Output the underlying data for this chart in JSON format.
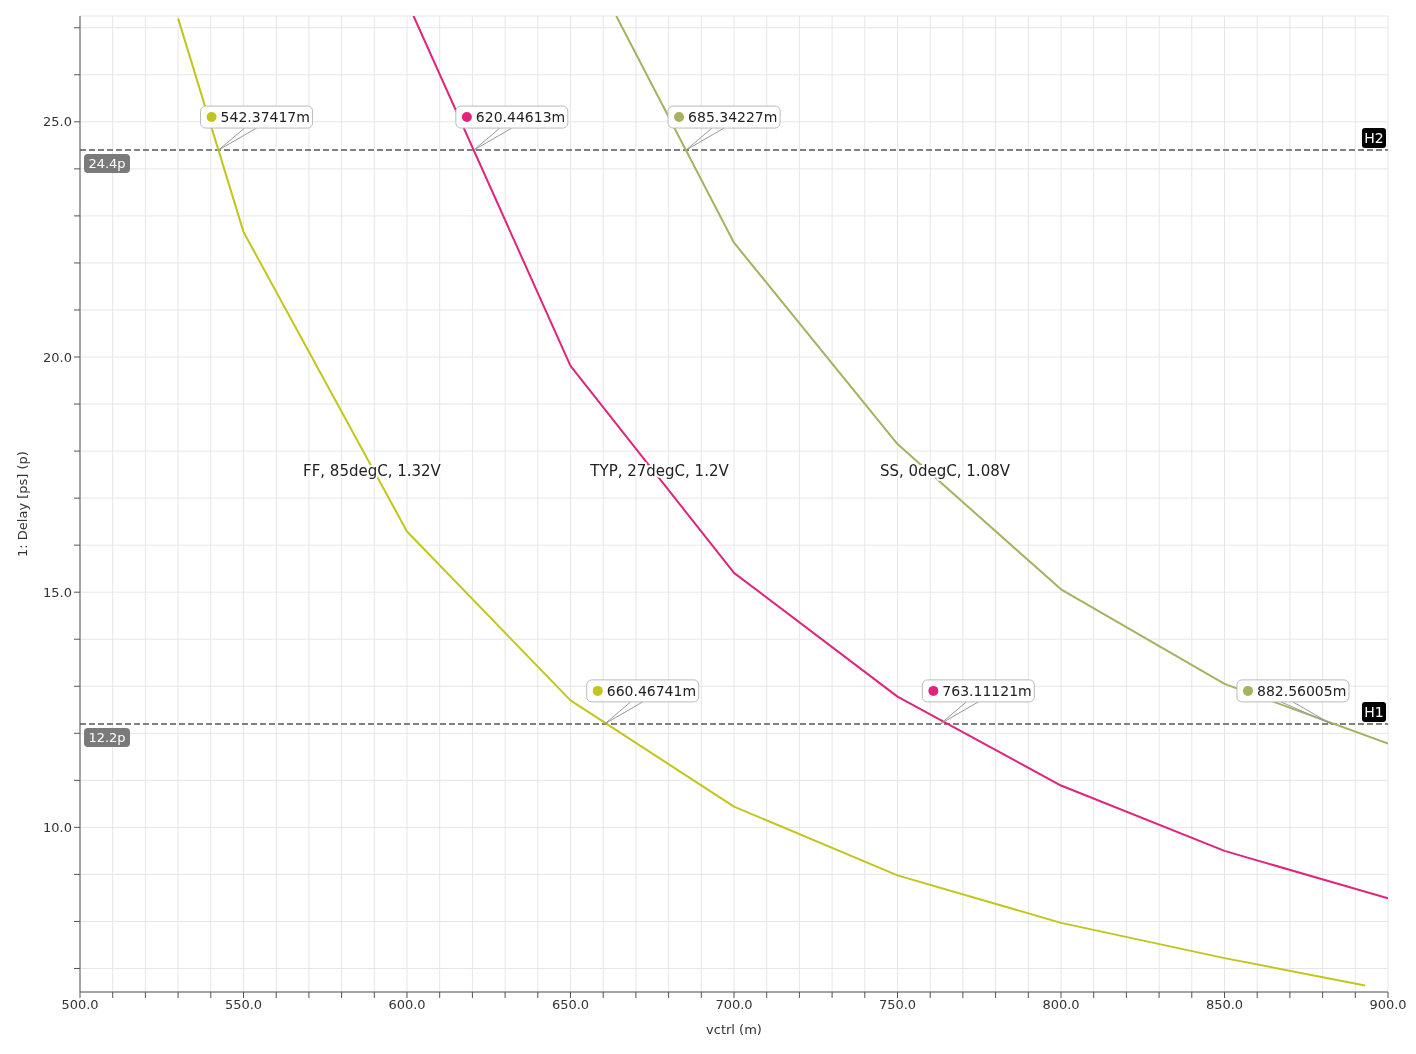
{
  "chart_data": {
    "type": "line",
    "xlabel": "vctrl (m)",
    "ylabel": "1: Delay [ps] (p)",
    "xlim": [
      500,
      900
    ],
    "ylim": [
      6.5,
      27.25
    ],
    "xticks": [
      {
        "value": 500,
        "label": "500.0"
      },
      {
        "value": 510,
        "label": null
      },
      {
        "value": 520,
        "label": null
      },
      {
        "value": 530,
        "label": null
      },
      {
        "value": 540,
        "label": null
      },
      {
        "value": 550,
        "label": "550.0"
      },
      {
        "value": 560,
        "label": null
      },
      {
        "value": 570,
        "label": null
      },
      {
        "value": 580,
        "label": null
      },
      {
        "value": 590,
        "label": null
      },
      {
        "value": 600,
        "label": "600.0"
      },
      {
        "value": 610,
        "label": null
      },
      {
        "value": 620,
        "label": null
      },
      {
        "value": 630,
        "label": null
      },
      {
        "value": 640,
        "label": null
      },
      {
        "value": 650,
        "label": "650.0"
      },
      {
        "value": 660,
        "label": null
      },
      {
        "value": 670,
        "label": null
      },
      {
        "value": 680,
        "label": null
      },
      {
        "value": 690,
        "label": null
      },
      {
        "value": 700,
        "label": "700.0"
      },
      {
        "value": 710,
        "label": null
      },
      {
        "value": 720,
        "label": null
      },
      {
        "value": 730,
        "label": null
      },
      {
        "value": 740,
        "label": null
      },
      {
        "value": 750,
        "label": "750.0"
      },
      {
        "value": 760,
        "label": null
      },
      {
        "value": 770,
        "label": null
      },
      {
        "value": 780,
        "label": null
      },
      {
        "value": 790,
        "label": null
      },
      {
        "value": 800,
        "label": "800.0"
      },
      {
        "value": 810,
        "label": null
      },
      {
        "value": 820,
        "label": null
      },
      {
        "value": 830,
        "label": null
      },
      {
        "value": 840,
        "label": null
      },
      {
        "value": 850,
        "label": "850.0"
      },
      {
        "value": 860,
        "label": null
      },
      {
        "value": 870,
        "label": null
      },
      {
        "value": 880,
        "label": null
      },
      {
        "value": 890,
        "label": null
      },
      {
        "value": 900,
        "label": "900.0"
      }
    ],
    "yticks": [
      {
        "value": 7,
        "label": null
      },
      {
        "value": 8,
        "label": null
      },
      {
        "value": 9,
        "label": null
      },
      {
        "value": 10,
        "label": "10.0"
      },
      {
        "value": 11,
        "label": null
      },
      {
        "value": 12,
        "label": null
      },
      {
        "value": 13,
        "label": null
      },
      {
        "value": 14,
        "label": null
      },
      {
        "value": 15,
        "label": "15.0"
      },
      {
        "value": 16,
        "label": null
      },
      {
        "value": 17,
        "label": null
      },
      {
        "value": 18,
        "label": null
      },
      {
        "value": 19,
        "label": null
      },
      {
        "value": 20,
        "label": "20.0"
      },
      {
        "value": 21,
        "label": null
      },
      {
        "value": 22,
        "label": null
      },
      {
        "value": 23,
        "label": null
      },
      {
        "value": 24,
        "label": null
      },
      {
        "value": 25,
        "label": "25.0"
      },
      {
        "value": 26,
        "label": null
      },
      {
        "value": 27,
        "label": null
      }
    ],
    "grid": true,
    "marker": "none",
    "line_style": "solid",
    "series": [
      {
        "name": "FF, 85degC, 1.32V",
        "color": "#c2c61c",
        "x": [
          530,
          550,
          600,
          650,
          700,
          750,
          800,
          850,
          893
        ],
        "values": [
          27.2,
          22.66,
          16.29,
          12.7,
          10.44,
          8.98,
          7.97,
          7.22,
          6.64
        ]
      },
      {
        "name": "TYP, 27degC, 1.2V",
        "color": "#e0247c",
        "x": [
          602,
          650,
          700,
          750,
          800,
          850,
          900
        ],
        "values": [
          27.25,
          19.81,
          15.41,
          12.78,
          10.89,
          9.5,
          8.49
        ]
      },
      {
        "name": "SS, 0degC, 1.08V",
        "color": "#a9b060",
        "x": [
          664,
          700,
          750,
          800,
          850,
          900
        ],
        "values": [
          27.25,
          22.43,
          18.15,
          15.06,
          13.05,
          11.78
        ]
      }
    ],
    "ref_lines": [
      {
        "axis": "y",
        "value": 24.4,
        "label": "H2",
        "color": "#808080",
        "line_style": "dashed"
      },
      {
        "axis": "y",
        "value": 12.2,
        "label": "H1",
        "color": "#808080",
        "line_style": "dashed"
      }
    ],
    "annotations": [
      {
        "text": "24.4p",
        "x": 500,
        "y": 24.4
      },
      {
        "text": "12.2p",
        "x": 500,
        "y": 12.2
      },
      {
        "text": "542.37417m",
        "x": 542.37417,
        "y": 24.4
      },
      {
        "text": "620.44613m",
        "x": 620.44613,
        "y": 24.4
      },
      {
        "text": "685.34227m",
        "x": 685.34227,
        "y": 24.4
      },
      {
        "text": "660.46741m",
        "x": 660.46741,
        "y": 12.2
      },
      {
        "text": "763.11121m",
        "x": 763.11121,
        "y": 12.2
      },
      {
        "text": "882.56005m",
        "x": 882.56005,
        "y": 12.2
      }
    ]
  }
}
